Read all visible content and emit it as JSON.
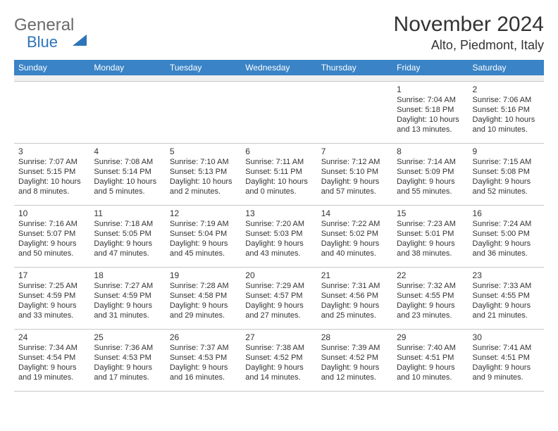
{
  "brand": {
    "part1": "General",
    "part2": "Blue"
  },
  "title": "November 2024",
  "location": "Alto, Piedmont, Italy",
  "colors": {
    "header_bg": "#3983c6",
    "header_text": "#ffffff",
    "border": "#c8c8c8",
    "band": "#f0f0f0"
  },
  "dayHeaders": [
    "Sunday",
    "Monday",
    "Tuesday",
    "Wednesday",
    "Thursday",
    "Friday",
    "Saturday"
  ],
  "weeks": [
    [
      null,
      null,
      null,
      null,
      null,
      {
        "n": "1",
        "sr": "Sunrise: 7:04 AM",
        "ss": "Sunset: 5:18 PM",
        "dl": "Daylight: 10 hours and 13 minutes."
      },
      {
        "n": "2",
        "sr": "Sunrise: 7:06 AM",
        "ss": "Sunset: 5:16 PM",
        "dl": "Daylight: 10 hours and 10 minutes."
      }
    ],
    [
      {
        "n": "3",
        "sr": "Sunrise: 7:07 AM",
        "ss": "Sunset: 5:15 PM",
        "dl": "Daylight: 10 hours and 8 minutes."
      },
      {
        "n": "4",
        "sr": "Sunrise: 7:08 AM",
        "ss": "Sunset: 5:14 PM",
        "dl": "Daylight: 10 hours and 5 minutes."
      },
      {
        "n": "5",
        "sr": "Sunrise: 7:10 AM",
        "ss": "Sunset: 5:13 PM",
        "dl": "Daylight: 10 hours and 2 minutes."
      },
      {
        "n": "6",
        "sr": "Sunrise: 7:11 AM",
        "ss": "Sunset: 5:11 PM",
        "dl": "Daylight: 10 hours and 0 minutes."
      },
      {
        "n": "7",
        "sr": "Sunrise: 7:12 AM",
        "ss": "Sunset: 5:10 PM",
        "dl": "Daylight: 9 hours and 57 minutes."
      },
      {
        "n": "8",
        "sr": "Sunrise: 7:14 AM",
        "ss": "Sunset: 5:09 PM",
        "dl": "Daylight: 9 hours and 55 minutes."
      },
      {
        "n": "9",
        "sr": "Sunrise: 7:15 AM",
        "ss": "Sunset: 5:08 PM",
        "dl": "Daylight: 9 hours and 52 minutes."
      }
    ],
    [
      {
        "n": "10",
        "sr": "Sunrise: 7:16 AM",
        "ss": "Sunset: 5:07 PM",
        "dl": "Daylight: 9 hours and 50 minutes."
      },
      {
        "n": "11",
        "sr": "Sunrise: 7:18 AM",
        "ss": "Sunset: 5:05 PM",
        "dl": "Daylight: 9 hours and 47 minutes."
      },
      {
        "n": "12",
        "sr": "Sunrise: 7:19 AM",
        "ss": "Sunset: 5:04 PM",
        "dl": "Daylight: 9 hours and 45 minutes."
      },
      {
        "n": "13",
        "sr": "Sunrise: 7:20 AM",
        "ss": "Sunset: 5:03 PM",
        "dl": "Daylight: 9 hours and 43 minutes."
      },
      {
        "n": "14",
        "sr": "Sunrise: 7:22 AM",
        "ss": "Sunset: 5:02 PM",
        "dl": "Daylight: 9 hours and 40 minutes."
      },
      {
        "n": "15",
        "sr": "Sunrise: 7:23 AM",
        "ss": "Sunset: 5:01 PM",
        "dl": "Daylight: 9 hours and 38 minutes."
      },
      {
        "n": "16",
        "sr": "Sunrise: 7:24 AM",
        "ss": "Sunset: 5:00 PM",
        "dl": "Daylight: 9 hours and 36 minutes."
      }
    ],
    [
      {
        "n": "17",
        "sr": "Sunrise: 7:25 AM",
        "ss": "Sunset: 4:59 PM",
        "dl": "Daylight: 9 hours and 33 minutes."
      },
      {
        "n": "18",
        "sr": "Sunrise: 7:27 AM",
        "ss": "Sunset: 4:59 PM",
        "dl": "Daylight: 9 hours and 31 minutes."
      },
      {
        "n": "19",
        "sr": "Sunrise: 7:28 AM",
        "ss": "Sunset: 4:58 PM",
        "dl": "Daylight: 9 hours and 29 minutes."
      },
      {
        "n": "20",
        "sr": "Sunrise: 7:29 AM",
        "ss": "Sunset: 4:57 PM",
        "dl": "Daylight: 9 hours and 27 minutes."
      },
      {
        "n": "21",
        "sr": "Sunrise: 7:31 AM",
        "ss": "Sunset: 4:56 PM",
        "dl": "Daylight: 9 hours and 25 minutes."
      },
      {
        "n": "22",
        "sr": "Sunrise: 7:32 AM",
        "ss": "Sunset: 4:55 PM",
        "dl": "Daylight: 9 hours and 23 minutes."
      },
      {
        "n": "23",
        "sr": "Sunrise: 7:33 AM",
        "ss": "Sunset: 4:55 PM",
        "dl": "Daylight: 9 hours and 21 minutes."
      }
    ],
    [
      {
        "n": "24",
        "sr": "Sunrise: 7:34 AM",
        "ss": "Sunset: 4:54 PM",
        "dl": "Daylight: 9 hours and 19 minutes."
      },
      {
        "n": "25",
        "sr": "Sunrise: 7:36 AM",
        "ss": "Sunset: 4:53 PM",
        "dl": "Daylight: 9 hours and 17 minutes."
      },
      {
        "n": "26",
        "sr": "Sunrise: 7:37 AM",
        "ss": "Sunset: 4:53 PM",
        "dl": "Daylight: 9 hours and 16 minutes."
      },
      {
        "n": "27",
        "sr": "Sunrise: 7:38 AM",
        "ss": "Sunset: 4:52 PM",
        "dl": "Daylight: 9 hours and 14 minutes."
      },
      {
        "n": "28",
        "sr": "Sunrise: 7:39 AM",
        "ss": "Sunset: 4:52 PM",
        "dl": "Daylight: 9 hours and 12 minutes."
      },
      {
        "n": "29",
        "sr": "Sunrise: 7:40 AM",
        "ss": "Sunset: 4:51 PM",
        "dl": "Daylight: 9 hours and 10 minutes."
      },
      {
        "n": "30",
        "sr": "Sunrise: 7:41 AM",
        "ss": "Sunset: 4:51 PM",
        "dl": "Daylight: 9 hours and 9 minutes."
      }
    ]
  ]
}
